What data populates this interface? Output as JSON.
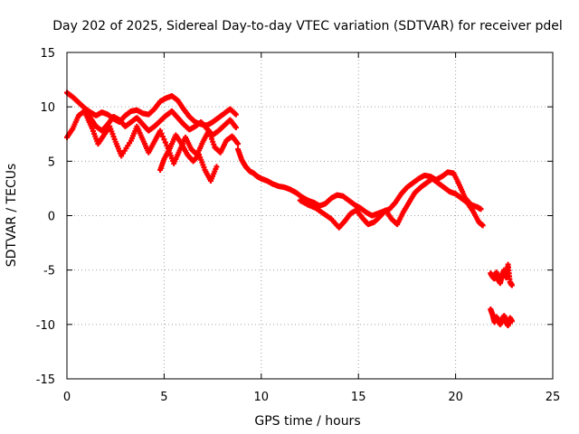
{
  "chart_data": {
    "type": "scatter",
    "title": "Day 202 of 2025, Sidereal Day-to-day VTEC variation (SDTVAR) for receiver pdel",
    "xlabel": "GPS time / hours",
    "ylabel": "SDTVAR / TECUs",
    "xlim": [
      0,
      25
    ],
    "ylim": [
      -15,
      15
    ],
    "xticks": [
      0,
      5,
      10,
      15,
      20,
      25
    ],
    "yticks": [
      -15,
      -10,
      -5,
      0,
      5,
      10,
      15
    ],
    "xtick_labels": [
      "0",
      "5",
      "10",
      "15",
      "20",
      "25"
    ],
    "ytick_labels": [
      "-15",
      "-10",
      "-5",
      "0",
      "5",
      "10",
      "15"
    ],
    "grid": true,
    "marker": "+",
    "color": "#ff0000",
    "series": [
      {
        "name": "trace-1",
        "x": [
          0,
          0.3,
          0.6,
          0.9,
          1.2,
          1.5,
          1.8,
          2.1,
          2.4,
          2.7,
          3.0,
          3.3,
          3.6,
          3.9,
          4.2,
          4.5,
          4.8,
          5.1,
          5.4,
          5.7,
          6.0,
          6.3,
          6.6,
          6.9,
          7.2,
          7.5,
          7.8,
          8.1,
          8.4,
          8.7
        ],
        "y": [
          11.3,
          10.9,
          10.4,
          9.9,
          9.5,
          9.2,
          9.5,
          9.3,
          8.9,
          8.6,
          9.2,
          9.6,
          9.7,
          9.4,
          9.3,
          9.8,
          10.5,
          10.8,
          11.0,
          10.6,
          9.8,
          9.1,
          8.6,
          8.4,
          8.3,
          8.6,
          9.0,
          9.4,
          9.8,
          9.3
        ]
      },
      {
        "name": "trace-2",
        "x": [
          0,
          0.3,
          0.6,
          0.9,
          1.2,
          1.5,
          1.8,
          2.1,
          2.4,
          2.7,
          3.0,
          3.3,
          3.6,
          3.9,
          4.2,
          4.5,
          4.8,
          5.1,
          5.4,
          5.7,
          6.0,
          6.3,
          6.6,
          6.9,
          7.2,
          7.5,
          7.8,
          8.1,
          8.4,
          8.7
        ],
        "y": [
          7.2,
          8.0,
          9.2,
          9.6,
          9.0,
          8.2,
          7.8,
          8.4,
          9.1,
          8.8,
          8.2,
          8.6,
          9.0,
          8.4,
          7.8,
          8.2,
          8.7,
          9.2,
          9.6,
          9.0,
          8.4,
          7.9,
          8.2,
          8.6,
          8.0,
          7.4,
          7.8,
          8.3,
          8.8,
          8.1
        ]
      },
      {
        "name": "trace-3",
        "x": [
          1.0,
          1.3,
          1.6,
          1.9,
          2.2,
          2.5,
          2.8,
          3.3,
          3.6,
          3.9,
          4.2,
          4.5,
          4.8,
          5.2,
          5.5,
          5.8,
          6.1,
          6.4,
          6.7,
          7.0,
          7.3,
          7.6,
          7.9,
          8.2,
          8.5,
          8.8
        ],
        "y": [
          9.2,
          8.0,
          6.6,
          7.4,
          8.2,
          6.8,
          5.5,
          6.9,
          8.2,
          7.0,
          5.8,
          6.8,
          7.8,
          6.2,
          4.8,
          6.0,
          7.2,
          6.1,
          5.6,
          6.8,
          7.8,
          6.3,
          5.8,
          6.9,
          7.3,
          6.6
        ]
      },
      {
        "name": "trace-4",
        "x": [
          4.8,
          5.0,
          5.3,
          5.6,
          5.9,
          6.2,
          6.5,
          6.8,
          7.1,
          7.4,
          7.7
        ],
        "y": [
          4.2,
          5.2,
          6.2,
          7.4,
          6.6,
          5.6,
          5.0,
          5.6,
          4.2,
          3.2,
          4.5
        ]
      },
      {
        "name": "trace-5",
        "x": [
          8.8,
          9.0,
          9.2,
          9.4,
          9.6,
          9.8,
          10.0,
          10.3,
          10.6,
          10.9,
          11.2,
          11.5,
          11.8,
          12.1,
          12.4,
          12.7,
          13.0,
          13.3,
          13.6,
          13.9,
          14.2,
          14.5,
          14.8,
          15.1,
          15.4,
          15.7,
          16.0,
          16.3,
          16.6,
          16.9,
          17.2,
          17.5,
          17.8,
          18.1,
          18.4,
          18.7,
          19.0,
          19.3,
          19.6,
          19.9,
          20.2,
          20.5,
          20.8,
          21.1,
          21.3
        ],
        "y": [
          6.1,
          5.1,
          4.5,
          4.1,
          3.9,
          3.6,
          3.4,
          3.2,
          2.9,
          2.7,
          2.6,
          2.4,
          2.1,
          1.7,
          1.4,
          1.2,
          0.9,
          1.1,
          1.6,
          1.9,
          1.8,
          1.4,
          1.0,
          0.7,
          0.3,
          0.0,
          0.2,
          0.4,
          0.6,
          1.2,
          2.0,
          2.6,
          3.0,
          3.4,
          3.7,
          3.6,
          3.3,
          3.6,
          4.0,
          3.9,
          2.8,
          1.6,
          1.0,
          0.8,
          0.6
        ]
      },
      {
        "name": "trace-6",
        "x": [
          12.0,
          12.4,
          12.8,
          13.2,
          13.6,
          14.0,
          14.3,
          14.6,
          14.9,
          15.2,
          15.5,
          15.8,
          16.1,
          16.4,
          16.7,
          17.0,
          17.3,
          17.6,
          17.9,
          18.2,
          18.5,
          18.8,
          19.1,
          19.4,
          19.7,
          20.0,
          20.3,
          20.6,
          20.9,
          21.2,
          21.4
        ],
        "y": [
          1.4,
          1.0,
          0.7,
          0.2,
          -0.3,
          -1.1,
          -0.5,
          0.2,
          0.5,
          -0.2,
          -0.8,
          -0.6,
          -0.1,
          0.5,
          -0.3,
          -0.8,
          0.3,
          1.2,
          2.1,
          2.6,
          3.0,
          3.4,
          3.0,
          2.6,
          2.2,
          2.0,
          1.6,
          1.2,
          0.4,
          -0.6,
          -0.9
        ]
      },
      {
        "name": "trace-7",
        "x": [
          21.8,
          21.9,
          22.0,
          22.1,
          22.2,
          22.3,
          22.4,
          22.5,
          22.6,
          22.7,
          22.8,
          22.9
        ],
        "y": [
          -8.6,
          -9.1,
          -9.8,
          -9.3,
          -9.7,
          -10.0,
          -9.5,
          -9.2,
          -9.8,
          -10.1,
          -9.4,
          -9.7
        ]
      },
      {
        "name": "trace-8",
        "x": [
          21.8,
          21.9,
          22.0,
          22.1,
          22.2,
          22.3,
          22.4,
          22.5,
          22.6,
          22.7,
          22.8,
          22.9
        ],
        "y": [
          -5.3,
          -5.6,
          -5.8,
          -5.2,
          -5.9,
          -6.2,
          -5.4,
          -5.0,
          -5.7,
          -4.5,
          -6.1,
          -6.4
        ]
      }
    ]
  }
}
